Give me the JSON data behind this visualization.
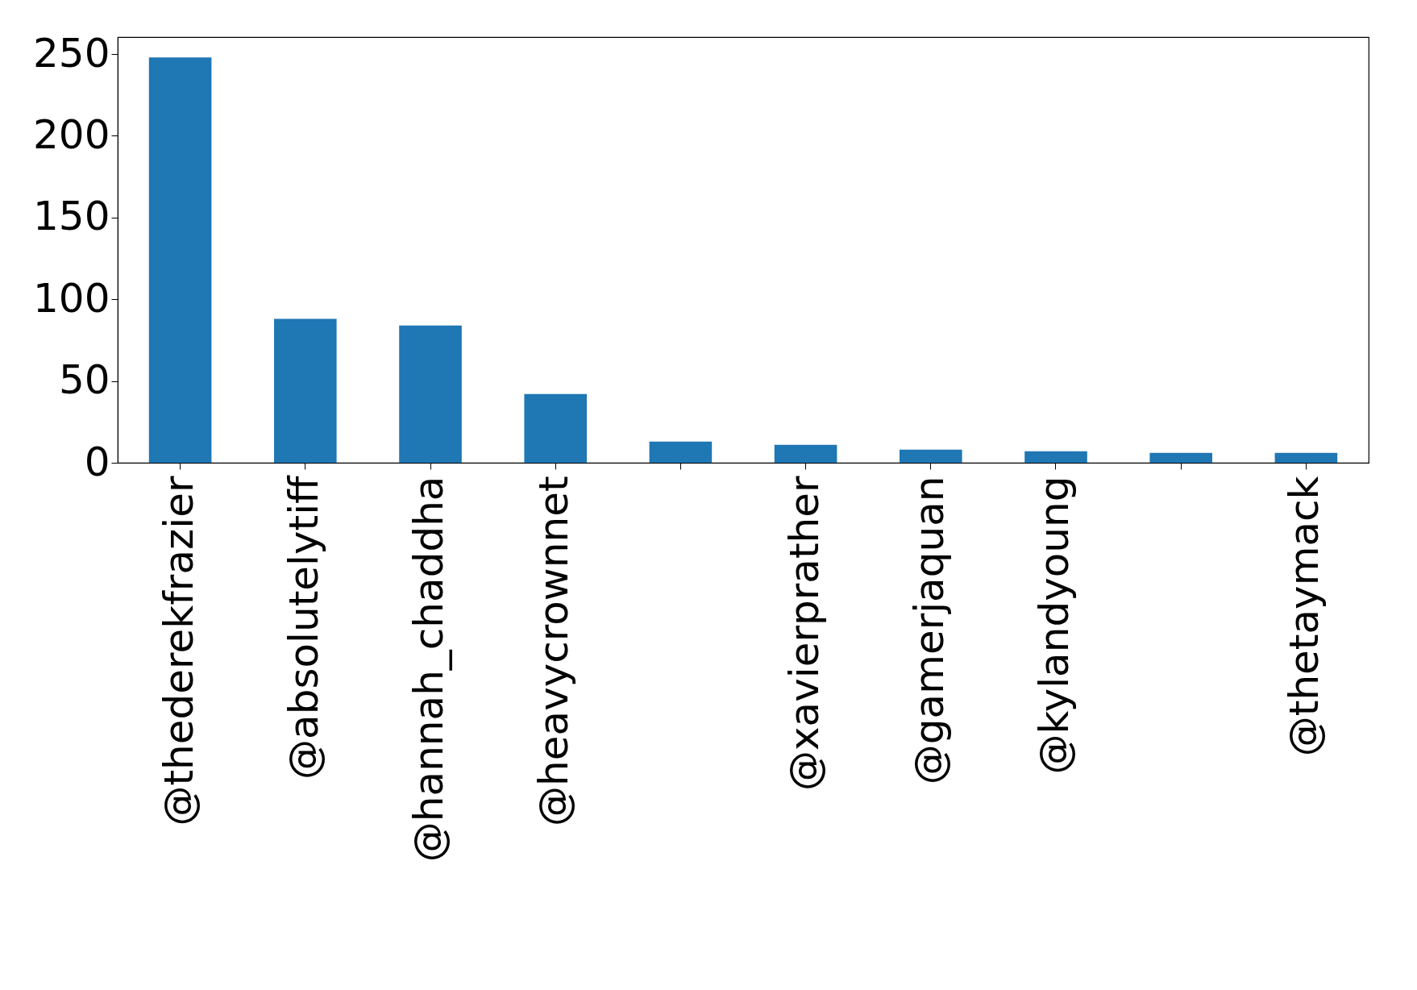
{
  "chart_data": {
    "type": "bar",
    "categories": [
      "@thederekfrazier",
      "@absolutelytiff",
      "@hannah_chaddha",
      "@heavycrownnet",
      null,
      "@xavierprather",
      "@gamerjaquan",
      "@kylandyoung",
      null,
      "@thetaymack"
    ],
    "values": [
      248,
      88,
      84,
      42,
      13,
      11,
      8,
      7,
      6,
      6
    ],
    "color": "#1f77b4",
    "ylim": [
      0,
      260.4
    ],
    "yticks": [
      0,
      50,
      100,
      150,
      200,
      250
    ],
    "grid": false
  }
}
